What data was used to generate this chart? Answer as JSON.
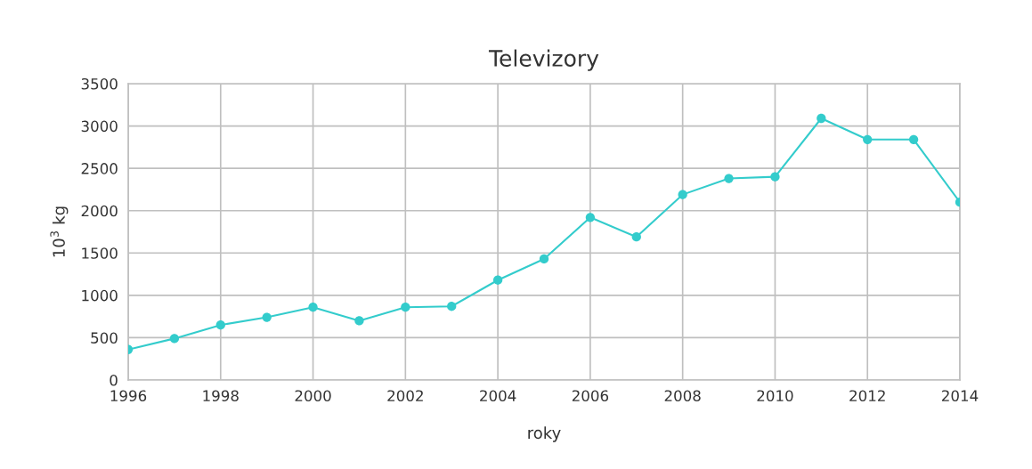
{
  "chart_data": {
    "type": "line",
    "title": "Televizory",
    "xlabel": "roky",
    "ylabel": "10$^{3}$ kg",
    "x": [
      1996,
      1997,
      1998,
      1999,
      2000,
      2001,
      2002,
      2003,
      2004,
      2005,
      2006,
      2007,
      2008,
      2009,
      2010,
      2011,
      2012,
      2013,
      2014
    ],
    "series": [
      {
        "color": "#33cccc",
        "values": [
          360,
          490,
          650,
          740,
          860,
          700,
          860,
          870,
          1180,
          1430,
          1920,
          1690,
          2190,
          2380,
          2400,
          3090,
          2840,
          2840,
          2100
        ]
      }
    ],
    "xlim": [
      1996,
      2014
    ],
    "xticks": [
      1996,
      1998,
      2000,
      2002,
      2004,
      2006,
      2008,
      2010,
      2012,
      2014
    ],
    "ylim": [
      0,
      3500
    ],
    "yticks": [
      0,
      500,
      1000,
      1500,
      2000,
      2500,
      3000,
      3500
    ],
    "grid": true,
    "marker": "circle",
    "line_style": "solid"
  }
}
